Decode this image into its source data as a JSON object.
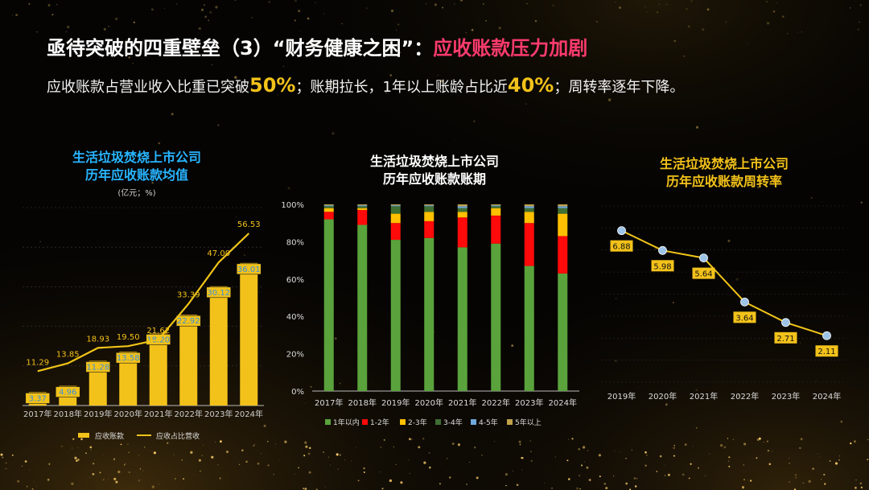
{
  "page": {
    "title_main": "亟待突破的四重壁垒（3）“财务健康之困”：",
    "title_highlight": "应收账款压力加剧",
    "subtitle": {
      "part1": "应收账款占营业收入比重已突破",
      "num1": "50%",
      "part2": "；账期拉长，1年以上账龄占比近",
      "num2": "40%",
      "part3": "；周转率逐年下降。"
    }
  },
  "colors": {
    "bar_gold": "#f3c21a",
    "line_gold": "#f0c419",
    "blue_title": "#28b5ff",
    "gold_title": "#f3c21a",
    "green": "#5aa33c",
    "red": "#ff0a0a",
    "yellow": "#ffc000",
    "dark_green": "#3f6f33",
    "light_blue": "#6fa8dc",
    "khaki": "#bfa24a",
    "marker_blue": "#9dc3e6"
  },
  "charts": {
    "left": {
      "title_line1": "生活垃圾焚烧上市公司",
      "title_line2": "历年应收账款均值",
      "unit": "(亿元；%)"
    },
    "middle": {
      "title_line1": "生活垃圾焚烧上市公司",
      "title_line2": "历年应收账款账期"
    },
    "right": {
      "title_line1": "生活垃圾焚烧上市公司",
      "title_line2": "历年应收账款周转率"
    }
  },
  "chart_data": [
    {
      "type": "bar+line",
      "title": "生活垃圾焚烧上市公司历年应收账款均值",
      "unit": "(亿元；%)",
      "categories": [
        "2017年",
        "2018年",
        "2019年",
        "2020年",
        "2021年",
        "2022年",
        "2023年",
        "2024年"
      ],
      "series": [
        {
          "name": "应收账款",
          "type": "bar",
          "axis": "left",
          "values": [
            3.37,
            4.96,
            11.28,
            13.58,
            18.2,
            22.92,
            30.12,
            36.01
          ]
        },
        {
          "name": "应收占比营收",
          "type": "line",
          "axis": "right",
          "values": [
            11.29,
            13.85,
            18.93,
            19.5,
            21.62,
            33.39,
            47.0,
            56.53
          ]
        }
      ],
      "ylim_left": [
        0,
        50
      ],
      "ylim_right": [
        0,
        65
      ],
      "legend": "bottom"
    },
    {
      "type": "stacked-bar-100",
      "title": "生活垃圾焚烧上市公司历年应收账款账期",
      "categories": [
        "2017年",
        "2018年",
        "2019年",
        "2020年",
        "2021年",
        "2022年",
        "2023年",
        "2024年"
      ],
      "yticks": [
        "0%",
        "20%",
        "40%",
        "60%",
        "80%",
        "100%"
      ],
      "series": [
        {
          "name": "1年以内",
          "values": [
            92,
            89,
            81,
            82,
            77,
            79,
            67,
            63
          ]
        },
        {
          "name": "1-2年",
          "values": [
            4,
            8,
            9,
            9,
            16,
            15,
            23,
            20
          ]
        },
        {
          "name": "2-3年",
          "values": [
            2,
            1,
            5,
            5,
            3,
            4,
            6,
            12
          ]
        },
        {
          "name": "3-4年",
          "values": [
            1,
            1,
            4,
            3,
            2,
            1,
            2,
            3
          ]
        },
        {
          "name": "4-5年",
          "values": [
            0.5,
            0.5,
            0.5,
            0.5,
            1,
            0.5,
            1,
            1
          ]
        },
        {
          "name": "5年以上",
          "values": [
            0.5,
            0.5,
            0.5,
            0.5,
            1,
            0.5,
            1,
            1
          ]
        }
      ],
      "legend": "bottom"
    },
    {
      "type": "line",
      "title": "生活垃圾焚烧上市公司历年应收账款周转率",
      "categories": [
        "2019年",
        "2020年",
        "2021年",
        "2022年",
        "2023年",
        "2024年"
      ],
      "values": [
        6.88,
        5.98,
        5.64,
        3.64,
        2.71,
        2.11
      ],
      "ylim": [
        0,
        8
      ],
      "grid": true
    }
  ]
}
